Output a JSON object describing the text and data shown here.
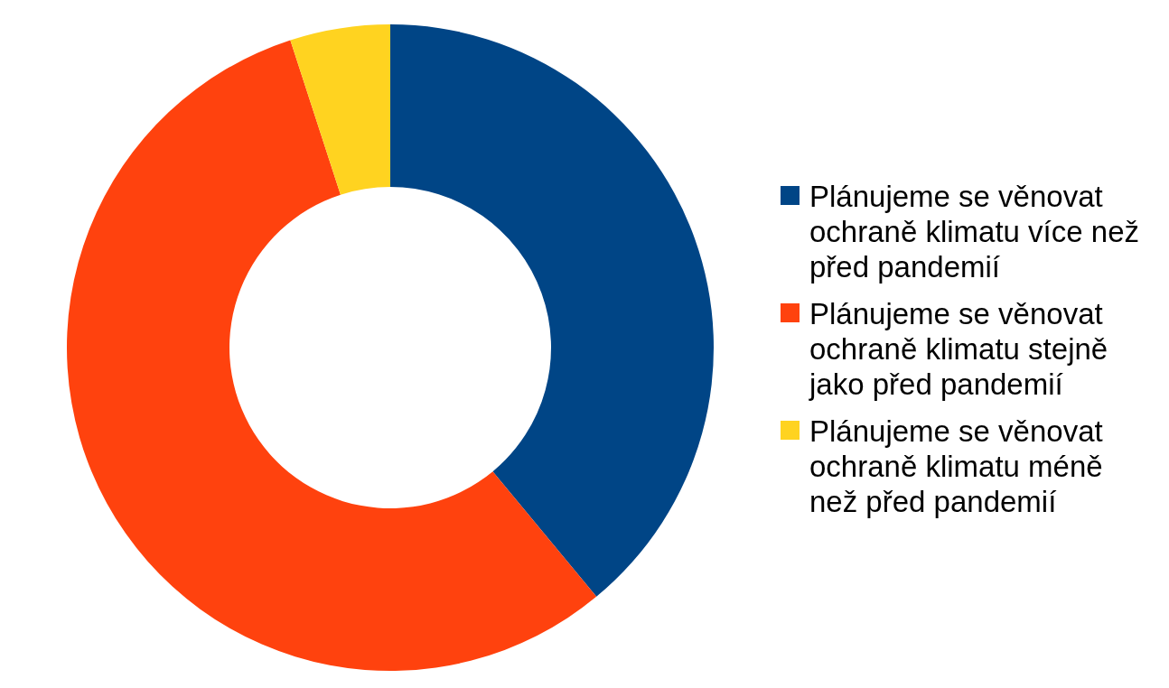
{
  "chart_data": {
    "type": "donut",
    "categories": [
      "Plánujeme se věnovat ochraně klimatu více než před pandemií",
      "Plánujeme se věnovat ochraně klimatu stejně jako před pandemií",
      "Plánujeme se věnovat ochraně klimatu méně než před pandemií"
    ],
    "values": [
      39,
      56,
      5
    ],
    "colors": [
      "#004586",
      "#ff420e",
      "#ffd320"
    ],
    "legend": "right"
  }
}
